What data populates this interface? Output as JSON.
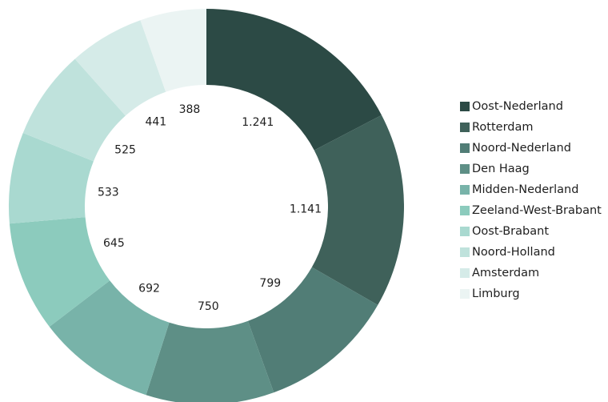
{
  "chart_data": {
    "type": "pie",
    "variant": "donut",
    "title": "",
    "legend_position": "right",
    "categories": [
      "Oost-Nederland",
      "Rotterdam",
      "Noord-Nederland",
      "Den Haag",
      "Midden-Nederland",
      "Zeeland-West-Brabant",
      "Oost-Brabant",
      "Noord-Holland",
      "Amsterdam",
      "Limburg"
    ],
    "values": [
      1241,
      1141,
      799,
      750,
      692,
      645,
      533,
      525,
      441,
      388
    ],
    "value_labels": [
      "1.241",
      "1.141",
      "799",
      "750",
      "692",
      "645",
      "533",
      "525",
      "441",
      "388"
    ],
    "colors": [
      "#2c4a45",
      "#3f615a",
      "#517d76",
      "#5e8f86",
      "#78b3a9",
      "#8ccbbd",
      "#a9d9d0",
      "#bfe2dc",
      "#d5ebe8",
      "#ebf4f3"
    ]
  }
}
